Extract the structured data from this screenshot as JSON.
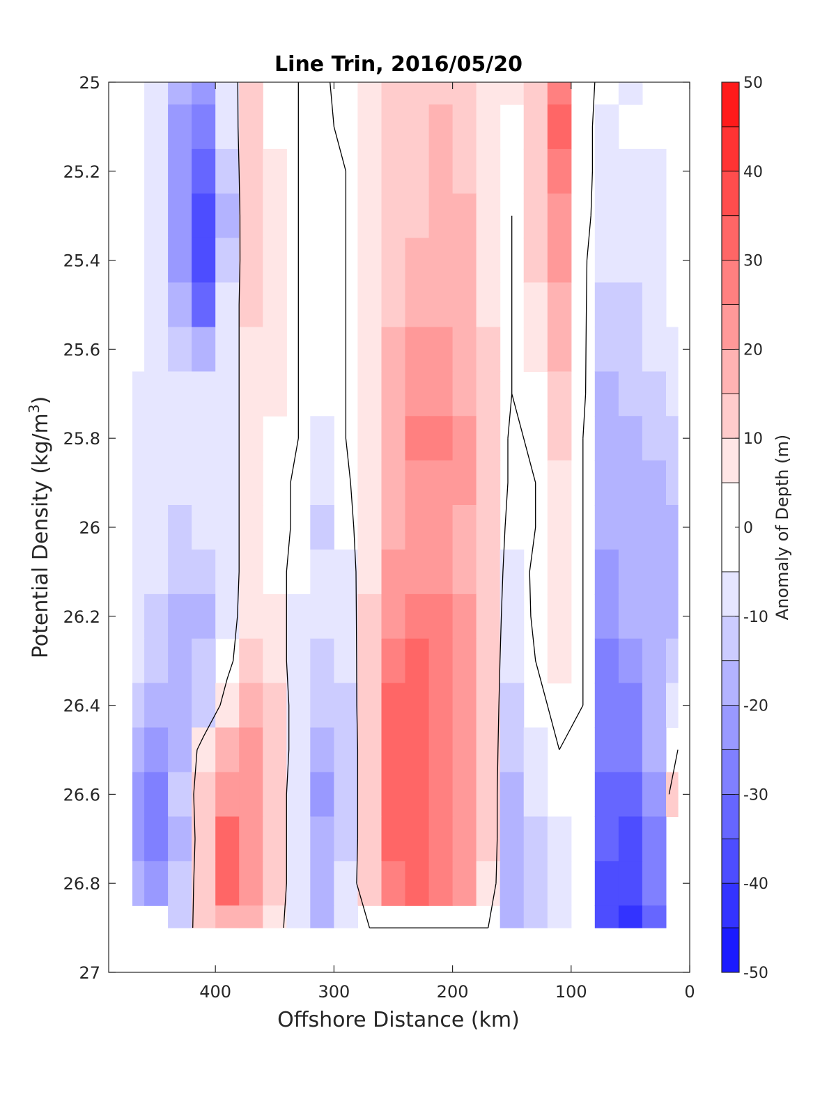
{
  "chart_data": {
    "type": "contour",
    "title": "Line Trin, 2016/05/20",
    "xlabel": "Offshore Distance (km)",
    "ylabel_main": "Potential Density (kg/m",
    "ylabel_sup": "3",
    "ylabel_end": ")",
    "xlim": [
      490,
      0
    ],
    "ylim": [
      25,
      27
    ],
    "x_reversed": true,
    "y_reversed": true,
    "x_ticks": [
      400,
      300,
      200,
      100,
      0
    ],
    "x_tick_labels": [
      "400",
      "300",
      "200",
      "100",
      "0"
    ],
    "y_ticks": [
      25,
      25.2,
      25.4,
      25.6,
      25.8,
      26,
      26.2,
      26.4,
      26.6,
      26.8,
      27
    ],
    "y_tick_labels": [
      "25",
      "25.2",
      "25.4",
      "25.6",
      "25.8",
      "26",
      "26.2",
      "26.4",
      "26.6",
      "26.8",
      "27"
    ],
    "colorbar": {
      "label": "Anomaly of Depth (m)",
      "levels": [
        -50,
        -45,
        -40,
        -35,
        -30,
        -25,
        -20,
        -15,
        -10,
        -5,
        5,
        10,
        15,
        20,
        25,
        30,
        35,
        40,
        45,
        50
      ],
      "tick_values": [
        50,
        40,
        30,
        20,
        10,
        0,
        -10,
        -20,
        -30,
        -40,
        -50
      ],
      "tick_labels": [
        "50",
        "40",
        "30",
        "20",
        "10",
        "0",
        "-10",
        "-20",
        "-30",
        "-40",
        "-50"
      ],
      "colors": [
        "#0000ff",
        "#1a1aff",
        "#3333ff",
        "#4d4dff",
        "#6666ff",
        "#8080ff",
        "#9999ff",
        "#b3b3ff",
        "#ccccff",
        "#e6e6ff",
        "#ffffff",
        "#ffe6e6",
        "#ffcccc",
        "#ffb3b3",
        "#ff9999",
        "#ff8080",
        "#ff6666",
        "#ff4d4d",
        "#ff3333",
        "#ff1a1a",
        "#ff0000"
      ]
    },
    "grid_x_km": [
      470,
      450,
      430,
      410,
      390,
      370,
      350,
      330,
      310,
      290,
      270,
      250,
      230,
      210,
      190,
      170,
      150,
      130,
      110,
      90,
      70,
      50,
      30,
      10
    ],
    "grid_y_density": [
      25.0,
      25.1,
      25.2,
      25.3,
      25.4,
      25.5,
      25.6,
      25.7,
      25.8,
      25.9,
      26.0,
      26.1,
      26.2,
      26.3,
      26.4,
      26.5,
      26.6,
      26.7,
      26.8,
      26.9
    ],
    "anomaly_m": [
      [
        null,
        -6,
        -18,
        -22,
        -8,
        10,
        4,
        0,
        -2,
        4,
        6,
        10,
        12,
        14,
        12,
        6,
        6,
        14,
        28,
        4,
        -4,
        -6,
        -4,
        null
      ],
      [
        null,
        -6,
        -22,
        -30,
        -10,
        12,
        4,
        0,
        -2,
        2,
        8,
        12,
        14,
        16,
        12,
        6,
        4,
        14,
        30,
        4,
        -6,
        -4,
        -4,
        null
      ],
      [
        -4,
        -8,
        -24,
        -34,
        -14,
        14,
        6,
        0,
        -2,
        0,
        8,
        12,
        14,
        16,
        14,
        8,
        2,
        14,
        28,
        4,
        -6,
        -6,
        -6,
        null
      ],
      [
        -4,
        -8,
        -22,
        -36,
        -16,
        14,
        6,
        0,
        -2,
        0,
        8,
        12,
        14,
        16,
        16,
        8,
        0,
        12,
        24,
        4,
        -8,
        -8,
        -6,
        null
      ],
      [
        -4,
        -8,
        -22,
        -40,
        -14,
        12,
        6,
        0,
        -2,
        0,
        8,
        14,
        18,
        18,
        16,
        8,
        0,
        10,
        20,
        2,
        -10,
        -10,
        -8,
        null
      ],
      [
        -4,
        -8,
        -18,
        -32,
        -10,
        10,
        6,
        0,
        -2,
        0,
        8,
        14,
        18,
        18,
        16,
        8,
        0,
        8,
        18,
        2,
        -12,
        -12,
        -10,
        null
      ],
      [
        -4,
        -8,
        -12,
        -18,
        -8,
        8,
        6,
        0,
        -2,
        0,
        8,
        16,
        20,
        20,
        18,
        10,
        0,
        6,
        16,
        2,
        -14,
        -12,
        -10,
        -8
      ],
      [
        -6,
        -8,
        -8,
        -8,
        -6,
        6,
        6,
        0,
        -4,
        0,
        8,
        16,
        22,
        22,
        18,
        10,
        0,
        4,
        12,
        2,
        -16,
        -14,
        -12,
        -10
      ],
      [
        -6,
        -8,
        -8,
        -8,
        -6,
        6,
        4,
        0,
        -6,
        0,
        8,
        18,
        26,
        26,
        20,
        10,
        -2,
        2,
        10,
        0,
        -18,
        -16,
        -14,
        -12
      ],
      [
        -6,
        -8,
        -10,
        -8,
        -6,
        6,
        4,
        -2,
        -8,
        -2,
        8,
        18,
        24,
        24,
        20,
        10,
        -2,
        0,
        8,
        0,
        -20,
        -18,
        -16,
        -14
      ],
      [
        -6,
        -8,
        -12,
        -10,
        -6,
        6,
        4,
        -2,
        -12,
        -4,
        8,
        18,
        22,
        22,
        18,
        10,
        -4,
        0,
        6,
        0,
        -20,
        -20,
        -18,
        -16
      ],
      [
        -8,
        -10,
        -14,
        -12,
        -6,
        6,
        4,
        -4,
        -10,
        -6,
        8,
        20,
        24,
        24,
        18,
        10,
        -6,
        2,
        6,
        0,
        -22,
        -20,
        -18,
        -16
      ],
      [
        -8,
        -12,
        -16,
        -18,
        -6,
        8,
        6,
        -6,
        -8,
        -8,
        10,
        24,
        28,
        28,
        20,
        10,
        -8,
        2,
        6,
        0,
        -24,
        -20,
        -18,
        -16
      ],
      [
        -10,
        -14,
        -18,
        -14,
        -4,
        12,
        8,
        -8,
        -12,
        -10,
        12,
        26,
        30,
        28,
        22,
        10,
        -10,
        0,
        6,
        0,
        -26,
        -22,
        -16,
        -12
      ],
      [
        -14,
        -18,
        -18,
        -14,
        6,
        16,
        12,
        -8,
        -14,
        -12,
        14,
        32,
        30,
        28,
        22,
        10,
        -12,
        -4,
        4,
        0,
        -28,
        -26,
        -18,
        -10
      ],
      [
        -18,
        -22,
        -16,
        6,
        16,
        20,
        12,
        -8,
        -18,
        -14,
        14,
        34,
        30,
        28,
        22,
        10,
        -14,
        -6,
        0,
        -2,
        -30,
        -28,
        -20,
        0
      ],
      [
        -22,
        -28,
        -14,
        10,
        24,
        20,
        10,
        -10,
        -22,
        -14,
        14,
        32,
        32,
        28,
        22,
        10,
        -16,
        -10,
        -4,
        -2,
        -32,
        -34,
        -24,
        14
      ],
      [
        -24,
        -30,
        -18,
        10,
        30,
        20,
        10,
        -10,
        -20,
        -12,
        12,
        30,
        34,
        28,
        22,
        10,
        -16,
        -12,
        -6,
        0,
        -34,
        -38,
        -26,
        null
      ],
      [
        -18,
        -22,
        -14,
        10,
        34,
        22,
        10,
        -10,
        -18,
        -10,
        12,
        28,
        30,
        26,
        20,
        8,
        -16,
        -12,
        -8,
        -2,
        -36,
        -40,
        -30,
        null
      ],
      [
        null,
        null,
        -12,
        10,
        16,
        16,
        6,
        -10,
        -18,
        -10,
        0,
        0,
        0,
        0,
        0,
        0,
        -16,
        -12,
        -10,
        -4,
        -36,
        -44,
        -34,
        null
      ]
    ]
  }
}
